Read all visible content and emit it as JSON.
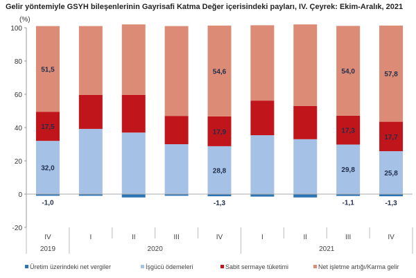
{
  "chart_data": {
    "type": "bar",
    "stacked": true,
    "title": "Gelir yöntemiyle GSYH bileşenlerinin Gayrisafi Katma Değer içerisindeki payları, IV. Çeyrek: Ekim-Aralık, 2021",
    "ylabel": "(%)",
    "ylim": [
      -20,
      100
    ],
    "yticks": [
      "-20",
      "0",
      "20",
      "40",
      "60",
      "80",
      "100"
    ],
    "categories": [
      "IV",
      "I",
      "II",
      "III",
      "IV",
      "I",
      "II",
      "III",
      "IV"
    ],
    "years": [
      {
        "label": "2019",
        "span": 1
      },
      {
        "label": "2020",
        "span": 4
      },
      {
        "label": "2021",
        "span": 4
      }
    ],
    "legend_position": "bottom",
    "grid": false,
    "series": [
      {
        "name": "Üretim üzerindeki net vergiler",
        "color": "#2e75b6",
        "values": [
          -1.0,
          -1.0,
          -2.0,
          -1.0,
          -1.3,
          -1.5,
          -2.0,
          -1.1,
          -1.3
        ],
        "labels": [
          "-1,0",
          "",
          "",
          "",
          "-1,3",
          "",
          "",
          "-1,1",
          "-1,3"
        ]
      },
      {
        "name": "İşgücü ödemeleri",
        "color": "#a6c1e6",
        "values": [
          32.0,
          39.2,
          37.0,
          30.0,
          28.8,
          35.4,
          33.0,
          29.8,
          25.8
        ],
        "labels": [
          "32,0",
          "",
          "",
          "",
          "28,8",
          "",
          "",
          "29,8",
          "25,8"
        ]
      },
      {
        "name": "Sabit sermaye tüketimi",
        "color": "#c0161b",
        "values": [
          17.5,
          20.4,
          22.6,
          17.0,
          17.9,
          20.8,
          20.0,
          17.3,
          17.7
        ],
        "labels": [
          "17,5",
          "",
          "",
          "",
          "17,9",
          "",
          "",
          "17,3",
          "17,7"
        ]
      },
      {
        "name": "Net işletme artığı/Karma gelir",
        "color": "#dc8c76",
        "values": [
          51.5,
          41.4,
          42.4,
          54.0,
          54.6,
          45.3,
          49.0,
          54.0,
          57.8
        ],
        "labels": [
          "51,5",
          "",
          "",
          "",
          "54,6",
          "",
          "",
          "54,0",
          "57,8"
        ]
      }
    ]
  }
}
